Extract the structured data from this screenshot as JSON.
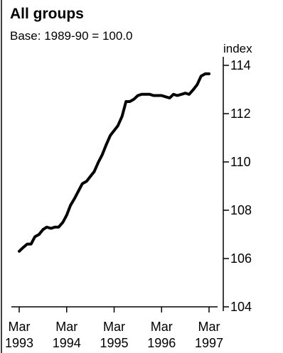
{
  "chart_data": {
    "type": "line",
    "title": "All groups",
    "subtitle": "Base: 1989-90 = 100.0",
    "ylabel": "index",
    "xlabel": "",
    "ylim": [
      104,
      114
    ],
    "yticks": [
      104,
      106,
      108,
      110,
      112,
      114
    ],
    "xtick_labels": [
      {
        "month": "Mar",
        "year": "1993"
      },
      {
        "month": "Mar",
        "year": "1994"
      },
      {
        "month": "Mar",
        "year": "1995"
      },
      {
        "month": "Mar",
        "year": "1996"
      },
      {
        "month": "Mar",
        "year": "1997"
      }
    ],
    "x_range": [
      1993.0,
      1997.0
    ],
    "grid": false,
    "series": [
      {
        "color": "#000000",
        "points": [
          [
            1993.0,
            106.3
          ],
          [
            1993.08,
            106.45
          ],
          [
            1993.17,
            106.6
          ],
          [
            1993.25,
            106.6
          ],
          [
            1993.33,
            106.9
          ],
          [
            1993.42,
            107.0
          ],
          [
            1993.5,
            107.2
          ],
          [
            1993.58,
            107.3
          ],
          [
            1993.67,
            107.25
          ],
          [
            1993.75,
            107.3
          ],
          [
            1993.83,
            107.3
          ],
          [
            1993.92,
            107.5
          ],
          [
            1994.0,
            107.8
          ],
          [
            1994.08,
            108.2
          ],
          [
            1994.17,
            108.5
          ],
          [
            1994.25,
            108.8
          ],
          [
            1994.33,
            109.1
          ],
          [
            1994.42,
            109.2
          ],
          [
            1994.5,
            109.4
          ],
          [
            1994.58,
            109.6
          ],
          [
            1994.67,
            110.0
          ],
          [
            1994.75,
            110.3
          ],
          [
            1994.83,
            110.7
          ],
          [
            1994.92,
            111.1
          ],
          [
            1995.0,
            111.3
          ],
          [
            1995.08,
            111.5
          ],
          [
            1995.17,
            111.9
          ],
          [
            1995.25,
            112.5
          ],
          [
            1995.33,
            112.5
          ],
          [
            1995.42,
            112.6
          ],
          [
            1995.5,
            112.75
          ],
          [
            1995.58,
            112.8
          ],
          [
            1995.67,
            112.8
          ],
          [
            1995.75,
            112.8
          ],
          [
            1995.83,
            112.75
          ],
          [
            1995.92,
            112.75
          ],
          [
            1996.0,
            112.75
          ],
          [
            1996.08,
            112.7
          ],
          [
            1996.17,
            112.65
          ],
          [
            1996.25,
            112.8
          ],
          [
            1996.33,
            112.75
          ],
          [
            1996.42,
            112.8
          ],
          [
            1996.5,
            112.85
          ],
          [
            1996.58,
            112.8
          ],
          [
            1996.67,
            113.0
          ],
          [
            1996.75,
            113.2
          ],
          [
            1996.83,
            113.55
          ],
          [
            1996.92,
            113.65
          ],
          [
            1997.0,
            113.65
          ]
        ]
      }
    ]
  }
}
